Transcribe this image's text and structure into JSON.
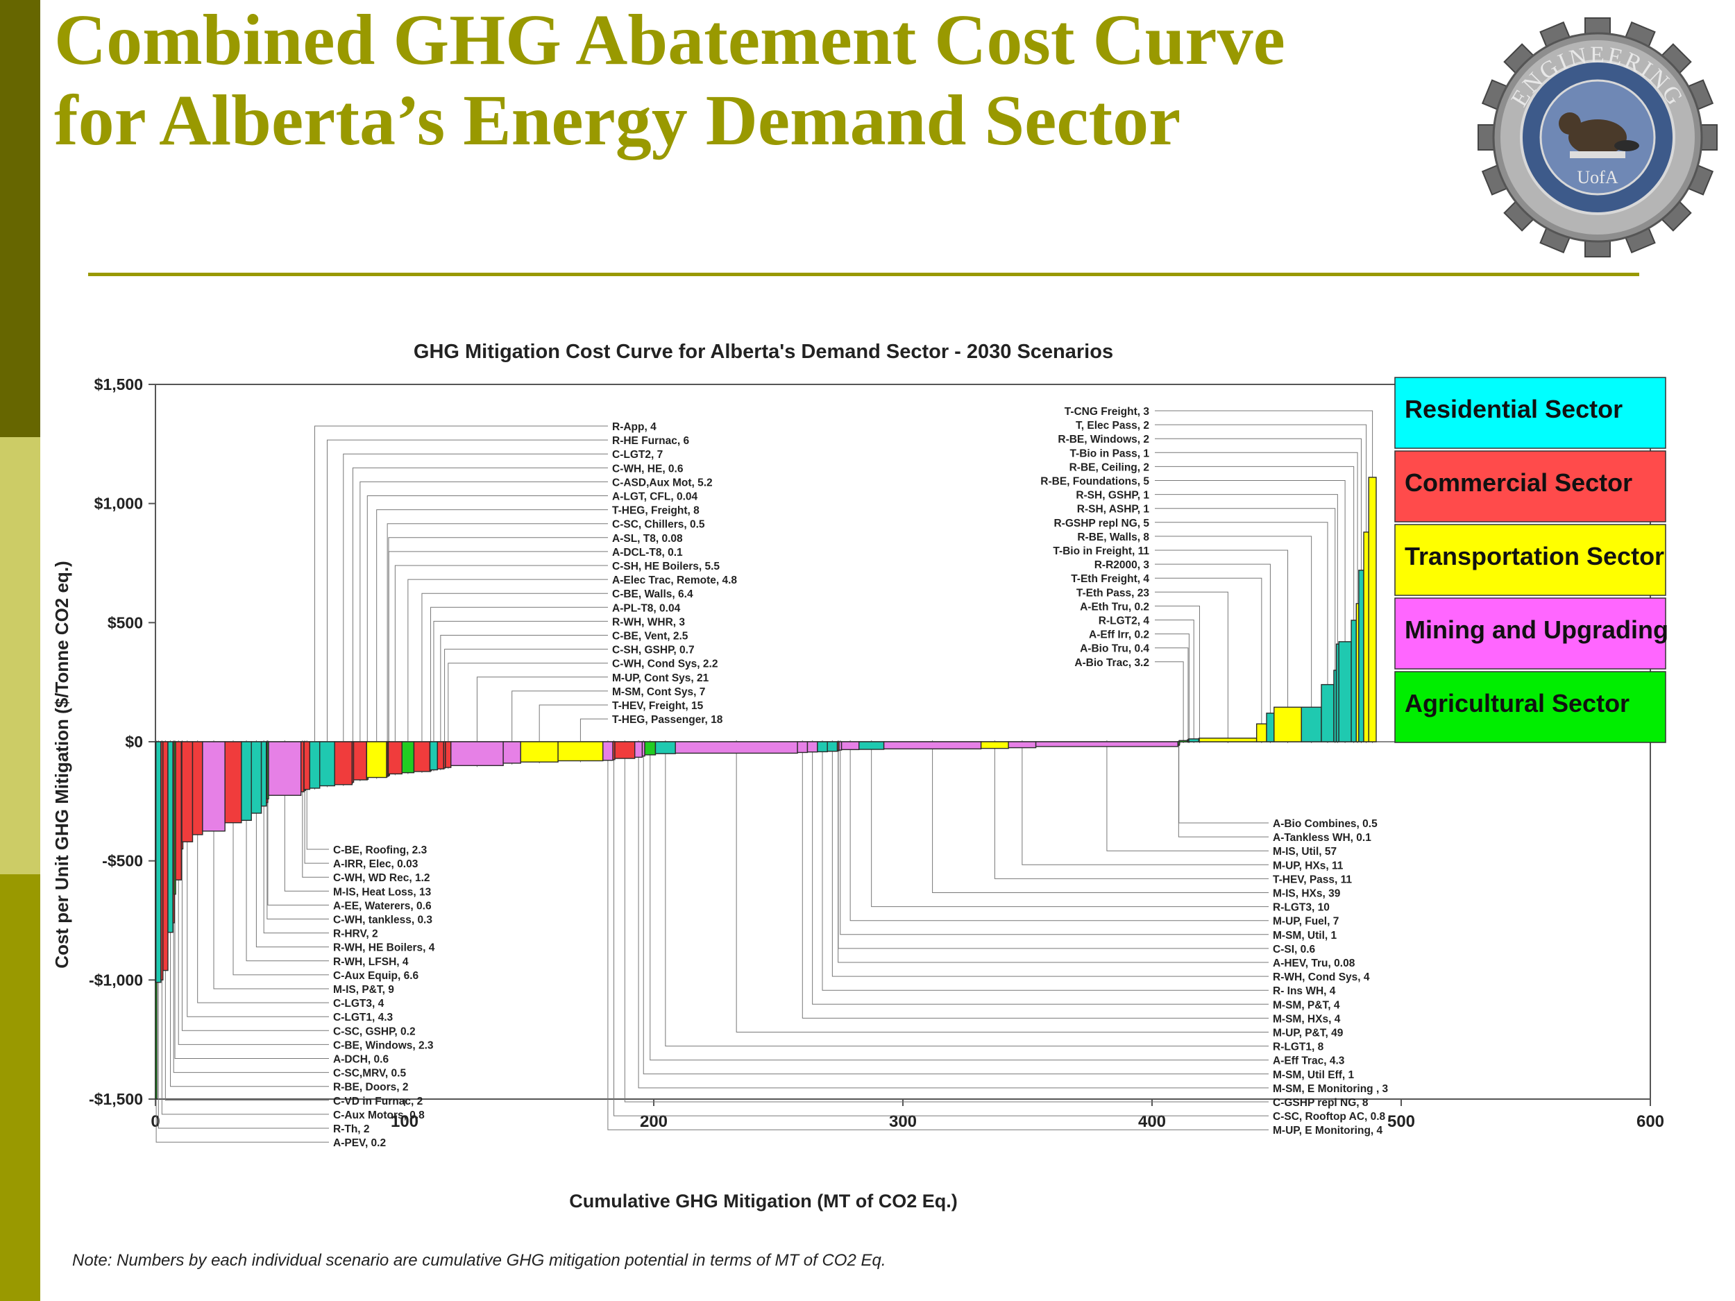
{
  "slide": {
    "title_line1": "Combined GHG Abatement Cost Curve",
    "title_line2": "for Alberta’s Energy Demand Sector",
    "accent_color": "#999900",
    "logo": {
      "ring_text": "ENGINEERING",
      "inner_text": "UofA",
      "icon": "beaver-icon"
    }
  },
  "chart_data": {
    "type": "bar",
    "subtype": "marginal-abatement-cost-curve",
    "title": "GHG Mitigation Cost Curve for Alberta's Demand Sector - 2030 Scenarios",
    "xlabel": "Cumulative GHG Mitigation (MT of CO2 Eq.)",
    "ylabel": "Cost per Unit GHG Mitigation ($/Tonne CO2 eq.)",
    "xlim": [
      0,
      600
    ],
    "ylim": [
      -1500,
      1500
    ],
    "x_ticks": [
      0,
      100,
      200,
      300,
      400,
      500,
      600
    ],
    "x_tick_labels": [
      "0",
      "100",
      "200",
      "300",
      "400",
      "500",
      "600"
    ],
    "y_ticks": [
      1500,
      1000,
      500,
      0,
      -500,
      -1000,
      -1500
    ],
    "y_tick_labels": [
      "$1,500",
      "$1,000",
      "$500",
      "$0",
      "-$500",
      "-$1,000",
      "-$1,500"
    ],
    "legend_position": "top-right",
    "legend": [
      {
        "name": "Residential Sector",
        "color": "#00ffff"
      },
      {
        "name": "Commercial Sector",
        "color": "#ff4b4b"
      },
      {
        "name": "Transportation Sector",
        "color": "#ffff00"
      },
      {
        "name": "Mining and Upgrading",
        "color": "#ff66ff"
      },
      {
        "name": "Agricultural Sector",
        "color": "#00ee00"
      }
    ],
    "sector_colors": {
      "R": "#1fc9b0",
      "C": "#f03c3c",
      "T": "#ffff00",
      "M": "#e680e6",
      "A": "#22cc22"
    },
    "scenarios": [
      {
        "label": "A-PEV",
        "potential": 0.2,
        "sector": "A",
        "cost": -1500
      },
      {
        "label": "R-Th",
        "potential": 2,
        "sector": "R",
        "cost": -1010
      },
      {
        "label": "C-Aux Motors",
        "potential": 0.8,
        "sector": "C",
        "cost": -1000
      },
      {
        "label": "C-VD in Furnac",
        "potential": 2,
        "sector": "C",
        "cost": -960
      },
      {
        "label": "R-BE, Doors",
        "potential": 2,
        "sector": "R",
        "cost": -800
      },
      {
        "label": "C-SC,MRV",
        "potential": 0.5,
        "sector": "C",
        "cost": -760
      },
      {
        "label": "A-DCH",
        "potential": 0.6,
        "sector": "A",
        "cost": -640
      },
      {
        "label": "C-BE, Windows",
        "potential": 2.3,
        "sector": "C",
        "cost": -580
      },
      {
        "label": "C-SC, GSHP",
        "potential": 0.2,
        "sector": "C",
        "cost": -450
      },
      {
        "label": "C-LGT1",
        "potential": 4.3,
        "sector": "C",
        "cost": -420
      },
      {
        "label": "C-LGT3",
        "potential": 4,
        "sector": "C",
        "cost": -390
      },
      {
        "label": "M-IS, P&T",
        "potential": 9,
        "sector": "M",
        "cost": -375
      },
      {
        "label": "C-Aux Equip",
        "potential": 6.6,
        "sector": "C",
        "cost": -340
      },
      {
        "label": "R-WH, LFSH",
        "potential": 4,
        "sector": "R",
        "cost": -330
      },
      {
        "label": "R-WH, HE Boilers",
        "potential": 4,
        "sector": "R",
        "cost": -300
      },
      {
        "label": "R-HRV",
        "potential": 2,
        "sector": "R",
        "cost": -270
      },
      {
        "label": "C-WH, tankless",
        "potential": 0.3,
        "sector": "C",
        "cost": -255
      },
      {
        "label": "A-EE, Waterers",
        "potential": 0.6,
        "sector": "A",
        "cost": -240
      },
      {
        "label": "M-IS, Heat Loss",
        "potential": 13,
        "sector": "M",
        "cost": -225
      },
      {
        "label": "C-WH, WD Rec",
        "potential": 1.2,
        "sector": "C",
        "cost": -210
      },
      {
        "label": "A-IRR, Elec",
        "potential": 0.03,
        "sector": "A",
        "cost": -205
      },
      {
        "label": "C-BE, Roofing",
        "potential": 2.3,
        "sector": "C",
        "cost": -200
      },
      {
        "label": "R-App",
        "potential": 4,
        "sector": "R",
        "cost": -195
      },
      {
        "label": "R-HE Furnac",
        "potential": 6,
        "sector": "R",
        "cost": -185
      },
      {
        "label": "C-LGT2",
        "potential": 7,
        "sector": "C",
        "cost": -180
      },
      {
        "label": "C-WH, HE",
        "potential": 0.6,
        "sector": "C",
        "cost": -170
      },
      {
        "label": "C-ASD,Aux Mot",
        "potential": 5.2,
        "sector": "C",
        "cost": -160
      },
      {
        "label": "A-LGT, CFL",
        "potential": 0.04,
        "sector": "A",
        "cost": -158
      },
      {
        "label": "T-HEG, Freight",
        "potential": 8,
        "sector": "T",
        "cost": -150
      },
      {
        "label": "C-SC, Chillers",
        "potential": 0.5,
        "sector": "C",
        "cost": -145
      },
      {
        "label": "A-SL, T8",
        "potential": 0.08,
        "sector": "A",
        "cost": -142
      },
      {
        "label": "A-DCL-T8",
        "potential": 0.1,
        "sector": "A",
        "cost": -140
      },
      {
        "label": "C-SH, HE Boilers",
        "potential": 5.5,
        "sector": "C",
        "cost": -135
      },
      {
        "label": "A-Elec Trac, Remote",
        "potential": 4.8,
        "sector": "A",
        "cost": -130
      },
      {
        "label": "C-BE, Walls",
        "potential": 6.4,
        "sector": "C",
        "cost": -125
      },
      {
        "label": "A-PL-T8",
        "potential": 0.04,
        "sector": "A",
        "cost": -122
      },
      {
        "label": "R-WH, WHR",
        "potential": 3,
        "sector": "R",
        "cost": -118
      },
      {
        "label": "C-BE, Vent",
        "potential": 2.5,
        "sector": "C",
        "cost": -114
      },
      {
        "label": "C-SH, GSHP",
        "potential": 0.7,
        "sector": "C",
        "cost": -110
      },
      {
        "label": "C-WH, Cond Sys",
        "potential": 2.2,
        "sector": "C",
        "cost": -108
      },
      {
        "label": "M-UP, Cont Sys",
        "potential": 21,
        "sector": "M",
        "cost": -100
      },
      {
        "label": "M-SM, Cont Sys",
        "potential": 7,
        "sector": "M",
        "cost": -90
      },
      {
        "label": "T-HEV, Freight",
        "potential": 15,
        "sector": "T",
        "cost": -85
      },
      {
        "label": "T-HEG, Passenger",
        "potential": 18,
        "sector": "T",
        "cost": -80
      },
      {
        "label": "M-UP, E Monitoring",
        "potential": 4,
        "sector": "M",
        "cost": -78
      },
      {
        "label": "C-SC, Rooftop AC",
        "potential": 0.8,
        "sector": "C",
        "cost": -75
      },
      {
        "label": "C-GSHP repl NG",
        "potential": 8,
        "sector": "C",
        "cost": -70
      },
      {
        "label": "M-SM, E Monitoring",
        "potential": 3,
        "sector": "M",
        "cost": -65
      },
      {
        "label": "M-SM, Util Eff",
        "potential": 1,
        "sector": "M",
        "cost": -60
      },
      {
        "label": "A-Eff Trac",
        "potential": 4.3,
        "sector": "A",
        "cost": -55
      },
      {
        "label": "R-LGT1",
        "potential": 8,
        "sector": "R",
        "cost": -50
      },
      {
        "label": "M-UP, P&T",
        "potential": 49,
        "sector": "M",
        "cost": -48
      },
      {
        "label": "M-SM, HXs",
        "potential": 4,
        "sector": "M",
        "cost": -45
      },
      {
        "label": "M-SM, P&T",
        "potential": 4,
        "sector": "M",
        "cost": -43
      },
      {
        "label": "R- Ins WH",
        "potential": 4,
        "sector": "R",
        "cost": -42
      },
      {
        "label": "R-WH, Cond Sys",
        "potential": 4,
        "sector": "R",
        "cost": -40
      },
      {
        "label": "A-HEV, Tru",
        "potential": 0.08,
        "sector": "A",
        "cost": -38
      },
      {
        "label": "C-SI",
        "potential": 0.6,
        "sector": "C",
        "cost": -36
      },
      {
        "label": "M-SM, Util",
        "potential": 1,
        "sector": "M",
        "cost": -35
      },
      {
        "label": "M-UP, Fuel",
        "potential": 7,
        "sector": "M",
        "cost": -33
      },
      {
        "label": "R-LGT3",
        "potential": 10,
        "sector": "R",
        "cost": -32
      },
      {
        "label": "M-IS, HXs",
        "potential": 39,
        "sector": "M",
        "cost": -30
      },
      {
        "label": "T-HEV, Pass",
        "potential": 11,
        "sector": "T",
        "cost": -28
      },
      {
        "label": "M-UP, HXs",
        "potential": 11,
        "sector": "M",
        "cost": -25
      },
      {
        "label": "M-IS, Util",
        "potential": 57,
        "sector": "M",
        "cost": -20
      },
      {
        "label": "A-Tankless WH",
        "potential": 0.1,
        "sector": "A",
        "cost": -15
      },
      {
        "label": "A-Bio Combines",
        "potential": 0.5,
        "sector": "A",
        "cost": -10
      },
      {
        "label": "A-Bio Trac",
        "potential": 3.2,
        "sector": "A",
        "cost": 5
      },
      {
        "label": "A-Bio Tru",
        "potential": 0.4,
        "sector": "A",
        "cost": 8
      },
      {
        "label": "A-Eff Irr",
        "potential": 0.2,
        "sector": "A",
        "cost": 10
      },
      {
        "label": "R-LGT2",
        "potential": 4,
        "sector": "R",
        "cost": 12
      },
      {
        "label": "A-Eth Tru",
        "potential": 0.2,
        "sector": "A",
        "cost": 14
      },
      {
        "label": "T-Eth Pass",
        "potential": 23,
        "sector": "T",
        "cost": 15
      },
      {
        "label": "T-Eth Freight",
        "potential": 4,
        "sector": "T",
        "cost": 75
      },
      {
        "label": "R-R2000",
        "potential": 3,
        "sector": "R",
        "cost": 120
      },
      {
        "label": "T-Bio in Freight",
        "potential": 11,
        "sector": "T",
        "cost": 145
      },
      {
        "label": "R-BE, Walls",
        "potential": 8,
        "sector": "R",
        "cost": 145
      },
      {
        "label": "R-GSHP repl NG",
        "potential": 5,
        "sector": "R",
        "cost": 240
      },
      {
        "label": "R-SH, ASHP",
        "potential": 1,
        "sector": "R",
        "cost": 300
      },
      {
        "label": "R-SH, GSHP",
        "potential": 1,
        "sector": "R",
        "cost": 410
      },
      {
        "label": "R-BE, Foundations",
        "potential": 5,
        "sector": "R",
        "cost": 420
      },
      {
        "label": "R-BE, Ceiling",
        "potential": 2,
        "sector": "R",
        "cost": 510
      },
      {
        "label": "T-Bio in Pass",
        "potential": 1,
        "sector": "T",
        "cost": 580
      },
      {
        "label": "R-BE, Windows",
        "potential": 2,
        "sector": "R",
        "cost": 720
      },
      {
        "label": "T, Elec Pass",
        "potential": 2,
        "sector": "T",
        "cost": 880
      },
      {
        "label": "T-CNG Freight",
        "potential": 3,
        "sector": "T",
        "cost": 1110
      }
    ],
    "callouts": {
      "top_left": [
        "R-App, 4",
        "R-HE Furnac, 6",
        "C-LGT2,  7",
        "C-WH, HE, 0.6",
        "C-ASD,Aux Mot,  5.2",
        "A-LGT, CFL, 0.04",
        "T-HEG, Freight,  8",
        "C-SC, Chillers,  0.5",
        "A-SL, T8,  0.08",
        "A-DCL-T8,  0.1",
        "C-SH, HE Boilers,  5.5",
        "A-Elec Trac, Remote, 4.8",
        "C-BE, Walls,  6.4",
        "A-PL-T8,  0.04",
        "R-WH, WHR,  3",
        "C-BE, Vent,  2.5",
        "C-SH, GSHP,  0.7",
        "C-WH, Cond Sys,  2.2",
        "M-UP, Cont Sys,  21",
        "M-SM, Cont Sys,  7",
        "T-HEV, Freight,  15",
        "T-HEG, Passenger,  18"
      ],
      "bottom_left": [
        "C-BE, Roofing,  2.3",
        "A-IRR, Elec,  0.03",
        "C-WH, WD Rec,  1.2",
        "M-IS, Heat Loss,  13",
        "A-EE, Waterers,  0.6",
        "C-WH, tankless,  0.3",
        "R-HRV,  2",
        "R-WH, HE Boilers,  4",
        "R-WH, LFSH,  4",
        "C-Aux Equip,  6.6",
        "M-IS, P&T,  9",
        "C-LGT3,  4",
        "C-LGT1,  4.3",
        "C-SC, GSHP,  0.2",
        "C-BE, Windows,  2.3",
        "A-DCH,  0.6",
        "C-SC,MRV,  0.5",
        "R-BE, Doors,  2",
        "C-VD in Furnac,  2",
        "C-Aux Motors,  0.8",
        "R-Th,  2",
        "A-PEV,  0.2"
      ],
      "top_right": [
        "T-CNG Freight, 3",
        "T, Elec Pass, 2",
        "R-BE, Windows, 2",
        "T-Bio in Pass, 1",
        "R-BE, Ceiling, 2",
        "R-BE, Foundations, 5",
        "R-SH, GSHP, 1",
        "R-SH, ASHP, 1",
        "R-GSHP repl NG, 5",
        "R-BE, Walls, 8",
        "T-Bio in Freight, 11",
        "R-R2000, 3",
        "T-Eth Freight, 4",
        "T-Eth Pass, 23",
        "A-Eth Tru, 0.2",
        "R-LGT2, 4",
        "A-Eff Irr, 0.2",
        "A-Bio Tru, 0.4",
        "A-Bio Trac, 3.2"
      ],
      "bottom_right": [
        "A-Bio Combines, 0.5",
        "A-Tankless WH, 0.1",
        "M-IS, Util, 57",
        "M-UP, HXs, 11",
        "T-HEV, Pass, 11",
        "M-IS, HXs, 39",
        "R-LGT3, 10",
        "M-UP, Fuel, 7",
        "M-SM, Util, 1",
        "C-SI, 0.6",
        "A-HEV, Tru, 0.08",
        "R-WH, Cond Sys, 4",
        "R- Ins WH, 4",
        "M-SM, P&T, 4",
        "M-SM, HXs, 4",
        "M-UP, P&T, 49",
        "R-LGT1, 8",
        "A-Eff Trac, 4.3",
        "M-SM, Util Eff, 1",
        "M-SM, E Monitoring , 3",
        "C-GSHP repl NG, 8",
        "C-SC, Rooftop AC, 0.8",
        "M-UP, E Monitoring, 4"
      ]
    },
    "note": "Note: Numbers by each individual scenario are cumulative GHG mitigation potential in terms of MT of CO2 Eq."
  }
}
